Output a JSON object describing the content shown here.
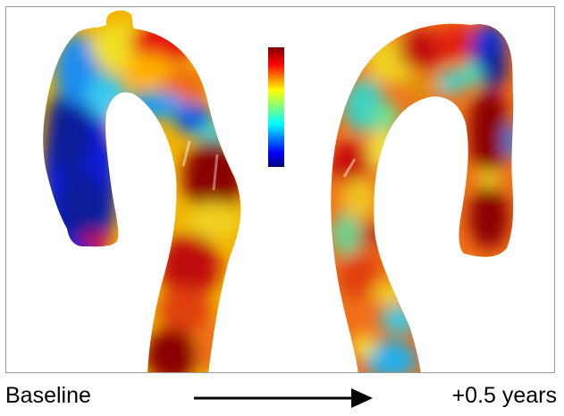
{
  "figure": {
    "left_caption": "Baseline",
    "right_caption": "+0.5 years",
    "colormap": [
      "#00007f",
      "#0000ff",
      "#00bfff",
      "#7fff7f",
      "#ffff00",
      "#ff7f00",
      "#ff0000",
      "#7f0000"
    ],
    "panels": [
      {
        "name": "baseline-aorta",
        "view": "left"
      },
      {
        "name": "followup-aorta",
        "view": "right"
      }
    ]
  }
}
